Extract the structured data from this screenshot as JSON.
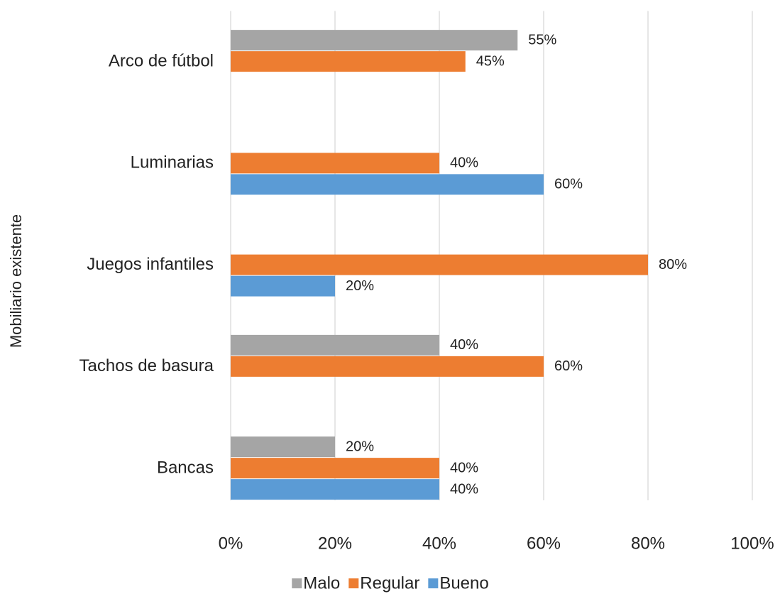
{
  "chart_data": {
    "type": "hbar",
    "ylabel": "Mobiliario existente",
    "categories": [
      "Arco de fútbol",
      "Luminarias",
      "Juegos infantiles",
      "Tachos de basura",
      "Bancas"
    ],
    "series": [
      {
        "name": "Malo",
        "color": "#a5a5a5",
        "values": [
          55,
          null,
          null,
          40,
          20
        ],
        "value_labels": [
          "55%",
          null,
          null,
          "40%",
          "20%"
        ]
      },
      {
        "name": "Regular",
        "color": "#ed7d31",
        "values": [
          45,
          40,
          80,
          60,
          40
        ],
        "value_labels": [
          "45%",
          "40%",
          "80%",
          "60%",
          "40%"
        ]
      },
      {
        "name": "Bueno",
        "color": "#5b9bd5",
        "values": [
          null,
          60,
          20,
          null,
          40
        ],
        "value_labels": [
          null,
          "60%",
          "20%",
          null,
          "40%"
        ]
      }
    ],
    "xlim": [
      0,
      100
    ],
    "xticks": [
      {
        "value": 0,
        "label": "0%"
      },
      {
        "value": 20,
        "label": "20%"
      },
      {
        "value": 40,
        "label": "40%"
      },
      {
        "value": 60,
        "label": "60%"
      },
      {
        "value": 80,
        "label": "80%"
      },
      {
        "value": 100,
        "label": "100%"
      }
    ],
    "grid": true,
    "legend": "bottom"
  }
}
